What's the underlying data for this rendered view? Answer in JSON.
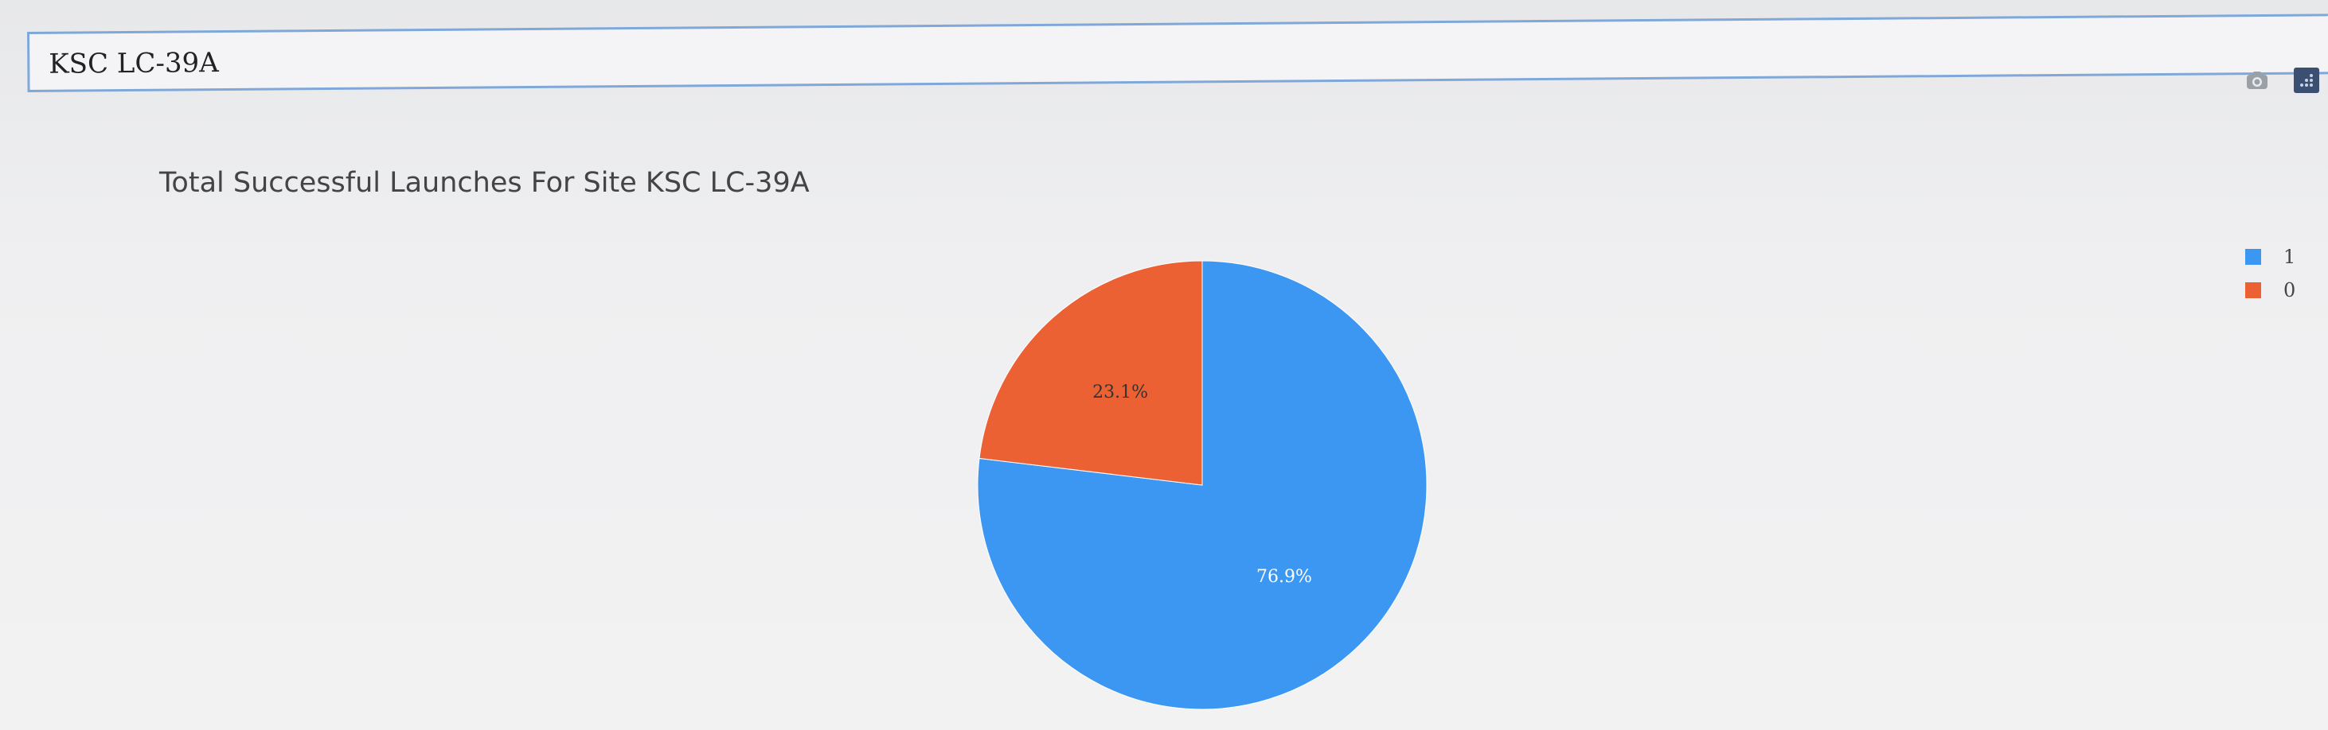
{
  "dropdown": {
    "value": "KSC LC-39A"
  },
  "modebar": {
    "icons": [
      "camera-icon",
      "plotly-logo-icon"
    ]
  },
  "chart_data": {
    "type": "pie",
    "title": "Total Successful Launches For Site KSC LC-39A",
    "slices": [
      {
        "label": "1",
        "value": 76.9,
        "text": "76.9%",
        "color": "#3b97f2"
      },
      {
        "label": "0",
        "value": 23.1,
        "text": "23.1%",
        "color": "#ec6133"
      }
    ],
    "legend": {
      "placement": "top-right",
      "entries": [
        "1",
        "0"
      ]
    }
  }
}
